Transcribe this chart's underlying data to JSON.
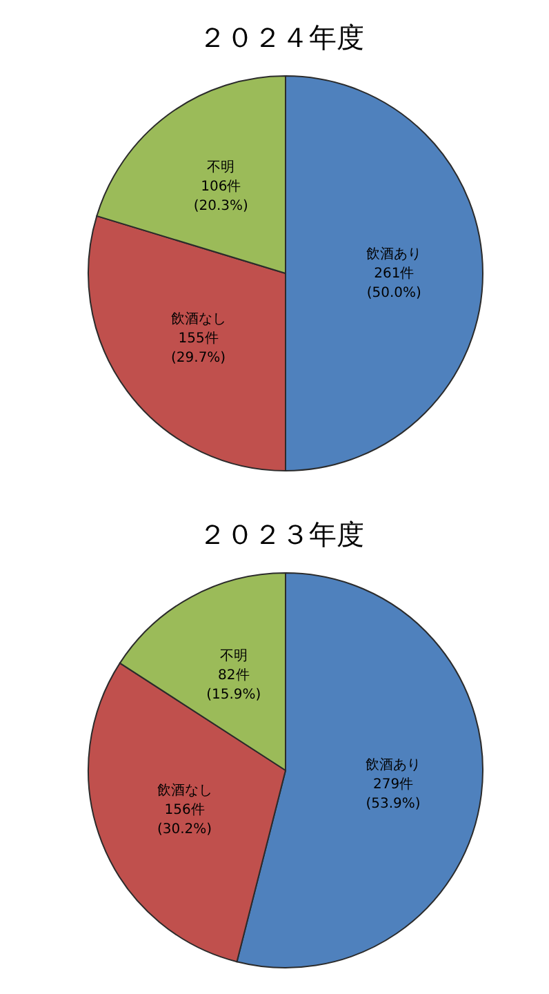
{
  "chart_data": [
    {
      "type": "pie",
      "title": "２０２４年度",
      "categories": [
        "飲酒あり",
        "飲酒なし",
        "不明"
      ],
      "values": [
        261,
        155,
        106
      ],
      "colors": [
        "#4f81bd",
        "#c0504d",
        "#9bbb59"
      ],
      "value_labels": [
        "261件\n(50.0%)",
        "155件\n(29.7%)",
        "106件\n(20.3%)"
      ]
    },
    {
      "type": "pie",
      "title": "２０２３年度",
      "categories": [
        "飲酒あり",
        "飲酒なし",
        "不明"
      ],
      "values": [
        279,
        156,
        82
      ],
      "colors": [
        "#4f81bd",
        "#c0504d",
        "#9bbb59"
      ],
      "value_labels": [
        "279件\n(53.9%)",
        "156件\n(30.2%)",
        "82件\n(15.9%)"
      ]
    }
  ]
}
